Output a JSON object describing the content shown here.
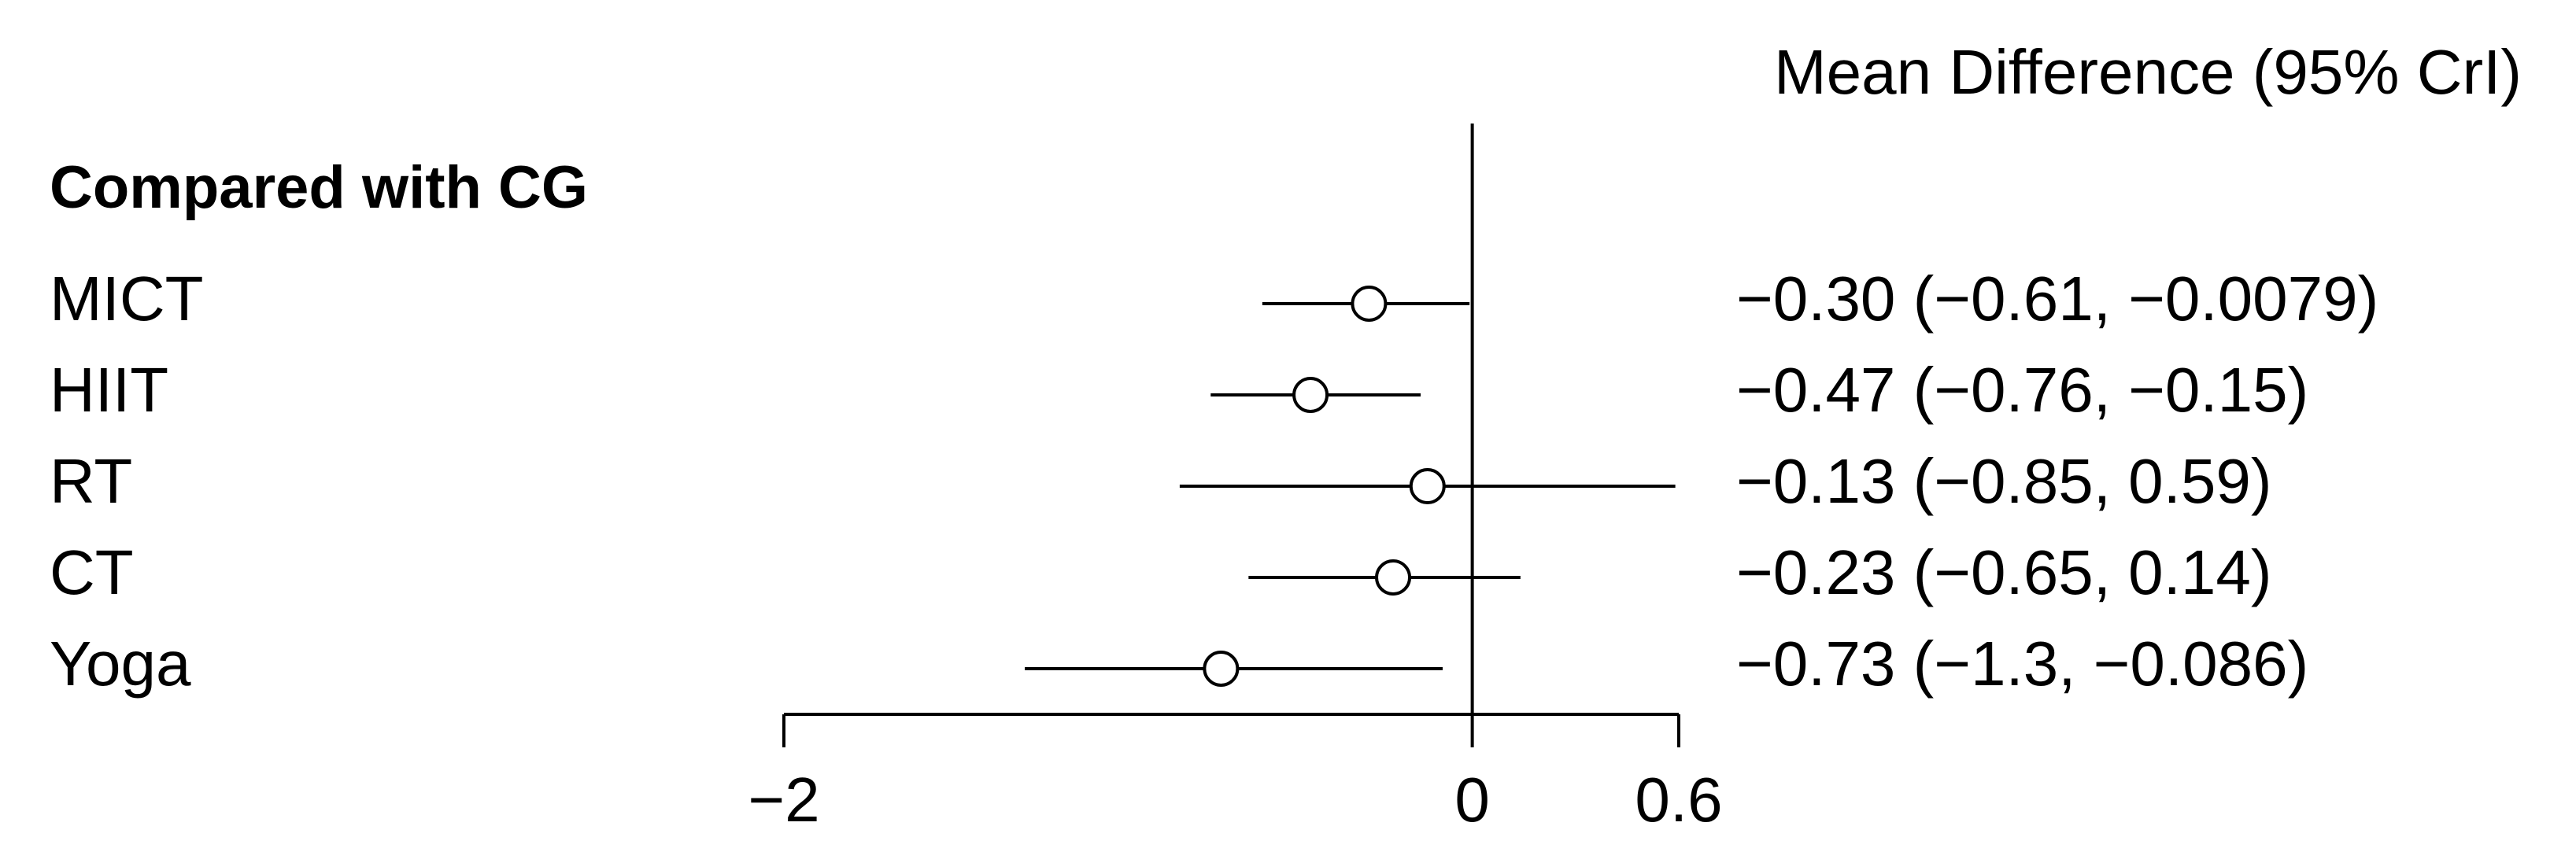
{
  "chart_data": {
    "type": "forest",
    "title": "Mean Difference (95% CrI)",
    "group_label": "Compared with CG",
    "categories": [
      "MICT",
      "HIIT",
      "RT",
      "CT",
      "Yoga"
    ],
    "values": [
      -0.3,
      -0.47,
      -0.13,
      -0.23,
      -0.73
    ],
    "lower": [
      -0.61,
      -0.76,
      -0.85,
      -0.65,
      -1.3
    ],
    "upper": [
      -0.0079,
      -0.15,
      0.59,
      0.14,
      -0.086
    ],
    "value_labels": [
      "−0.30 (−0.61, −0.0079)",
      "−0.47 (−0.76, −0.15)",
      "−0.13 (−0.85, 0.59)",
      "−0.23 (−0.65, 0.14)",
      "−0.73 (−1.3, −0.086)"
    ],
    "color": "#000000",
    "xlim": [
      -2,
      0.6
    ],
    "xticks": [
      {
        "value": -2,
        "label": "−2"
      },
      0,
      0.6
    ]
  }
}
